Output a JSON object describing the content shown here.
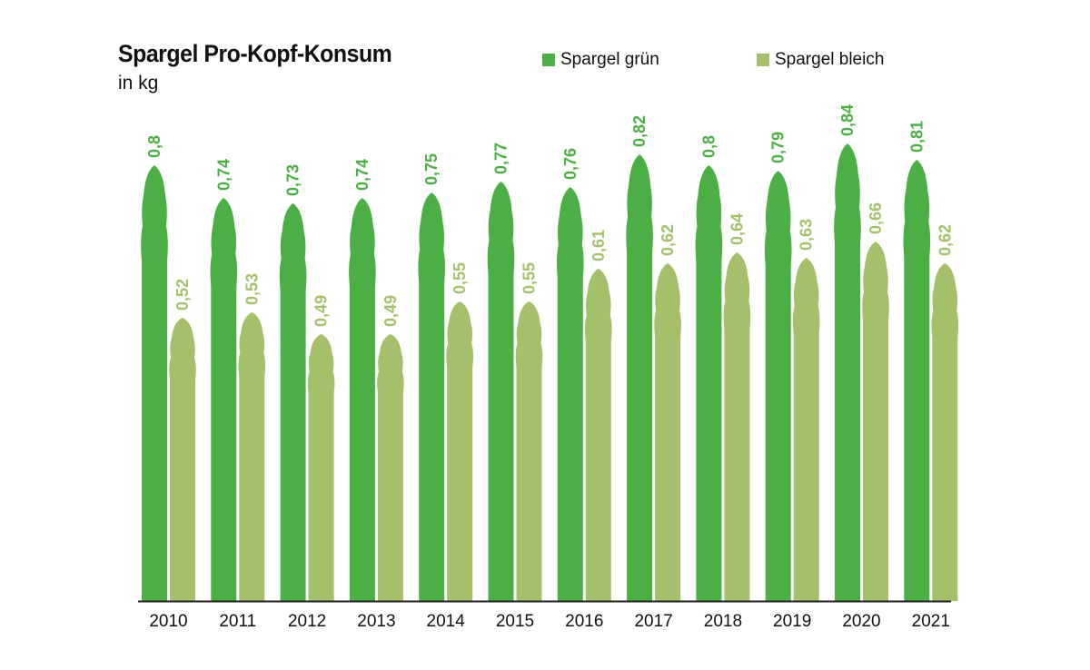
{
  "chart_data": {
    "type": "bar",
    "title": "Spargel Pro-Kopf-Konsum",
    "subtitle": "in kg",
    "categories": [
      "2010",
      "2011",
      "2012",
      "2013",
      "2014",
      "2015",
      "2016",
      "2017",
      "2018",
      "2019",
      "2020",
      "2021"
    ],
    "series": [
      {
        "name": "Spargel grün",
        "color": "#4caf46",
        "values": [
          0.8,
          0.74,
          0.73,
          0.74,
          0.75,
          0.77,
          0.76,
          0.82,
          0.8,
          0.79,
          0.84,
          0.81
        ],
        "labels": [
          "0,8",
          "0,74",
          "0,73",
          "0,74",
          "0,75",
          "0,77",
          "0,76",
          "0,82",
          "0,8",
          "0,79",
          "0,84",
          "0,81"
        ]
      },
      {
        "name": "Spargel bleich",
        "color": "#a4c06a",
        "values": [
          0.52,
          0.53,
          0.49,
          0.49,
          0.55,
          0.55,
          0.61,
          0.62,
          0.64,
          0.63,
          0.66,
          0.62
        ],
        "labels": [
          "0,52",
          "0,53",
          "0,49",
          "0,49",
          "0,55",
          "0,55",
          "0,61",
          "0,62",
          "0,64",
          "0,63",
          "0,66",
          "0,62"
        ]
      }
    ],
    "xlabel": "",
    "ylabel": "",
    "legend_position": "top-right",
    "grid": false,
    "bar_shape": "asparagus-spear"
  }
}
